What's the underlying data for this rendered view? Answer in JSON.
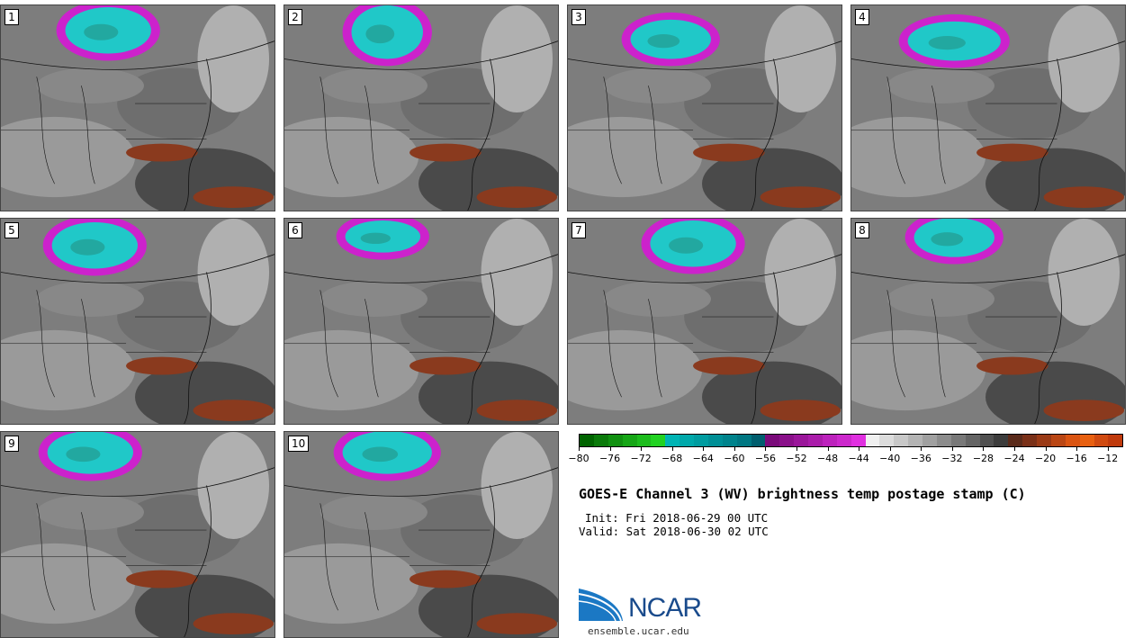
{
  "panels": [
    {
      "label": "1"
    },
    {
      "label": "2"
    },
    {
      "label": "3"
    },
    {
      "label": "4"
    },
    {
      "label": "5"
    },
    {
      "label": "6"
    },
    {
      "label": "7"
    },
    {
      "label": "8"
    },
    {
      "label": "9"
    },
    {
      "label": "10"
    }
  ],
  "colorbar": {
    "colors": [
      "#006400",
      "#0a7a0a",
      "#109010",
      "#16a616",
      "#1cbc1c",
      "#22d222",
      "#00b4b4",
      "#00a8aa",
      "#009ca0",
      "#008f96",
      "#00838c",
      "#007782",
      "#005e6e",
      "#7a0a7a",
      "#8a108a",
      "#9a169a",
      "#aa1caa",
      "#bc22bc",
      "#cc28cc",
      "#e030e0",
      "#f0f0f0",
      "#dcdcdc",
      "#c8c8c8",
      "#b4b4b4",
      "#a0a0a0",
      "#8c8c8c",
      "#787878",
      "#646464",
      "#505050",
      "#3c3c3c",
      "#5a2a1a",
      "#7a3018",
      "#9a3a16",
      "#ba4614",
      "#da5412",
      "#e86010",
      "#d04a10",
      "#c03a0c"
    ],
    "min": -80,
    "max": -10,
    "tick_labels": [
      "−80",
      "−76",
      "−72",
      "−68",
      "−64",
      "−60",
      "−56",
      "−52",
      "−48",
      "−44",
      "−40",
      "−36",
      "−32",
      "−28",
      "−24",
      "−20",
      "−16",
      "−12"
    ],
    "tick_values": [
      -80,
      -76,
      -72,
      -68,
      -64,
      -60,
      -56,
      -52,
      -48,
      -44,
      -40,
      -36,
      -32,
      -28,
      -24,
      -20,
      -16,
      -12
    ]
  },
  "title": "GOES-E Channel 3 (WV) brightness temp postage stamp (C)",
  "init": "Init: Fri 2018-06-29 00 UTC",
  "valid": "Valid: Sat 2018-06-30 02 UTC",
  "logo": {
    "text": "NCAR",
    "url": "ensemble.ucar.edu"
  },
  "colors": {
    "cold_cloud": "#20c8c8",
    "magenta": "#cc22cc",
    "warm": "#8a3a1e"
  }
}
